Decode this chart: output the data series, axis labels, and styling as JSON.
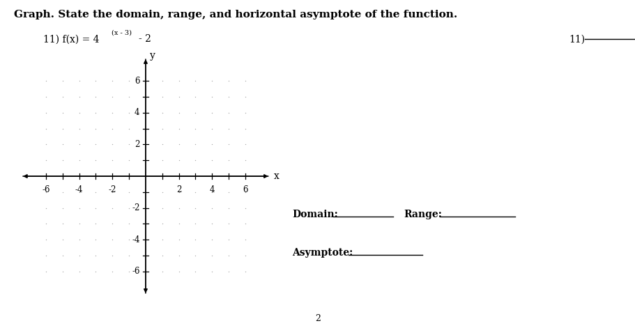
{
  "title_line1": "Graph. State the domain, range, and horizontal asymptote of the function.",
  "problem_label": "11) f(x) = 4",
  "exponent_text": "(x - 3)",
  "suffix_text": " - 2",
  "problem_number_right": "11)",
  "axis_range": [
    -7,
    7
  ],
  "tick_positions_even": [
    -6,
    -4,
    -2,
    2,
    4,
    6
  ],
  "tick_positions_all": [
    -6,
    -5,
    -4,
    -3,
    -2,
    -1,
    1,
    2,
    3,
    4,
    5,
    6
  ],
  "x_label": "x",
  "y_label": "y",
  "dot_color": "#aaaaaa",
  "background_color": "#ffffff",
  "domain_label": "Domain:",
  "range_label": "Range:",
  "asymptote_label": "Asymptote:",
  "page_number": "2",
  "font_size_title": 11,
  "font_size_body": 10,
  "font_size_tick": 8.5,
  "font_size_super": 7
}
